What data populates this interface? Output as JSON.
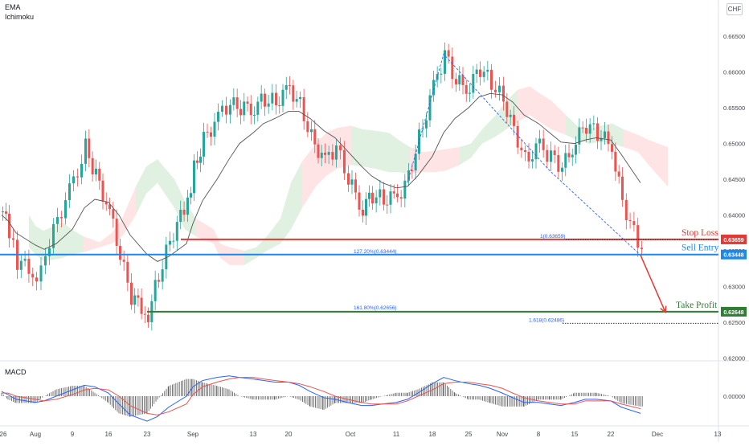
{
  "indicators": [
    "EMA",
    "Ichimoku"
  ],
  "currency": "CHF",
  "macd_label": "MACD",
  "colors": {
    "up": "#26a69a",
    "down": "#ef5350",
    "ema": "#555555",
    "cloud_bull": "#c8e6c9",
    "cloud_bear": "#ffcdd2",
    "stop": "#e53935",
    "entry": "#1e88e5",
    "target": "#2e7d32",
    "fib": "#2962ff",
    "macd": "#2962ff",
    "signal": "#ef5350",
    "hist": "#555555"
  },
  "chart_data": {
    "type": "line",
    "instrument_currency": "CHF",
    "x_axis_labels": [
      "26",
      "Aug",
      "9",
      "16",
      "23",
      "Sep",
      "13",
      "20",
      "Oct",
      "11",
      "18",
      "25",
      "Nov",
      "8",
      "15",
      "22",
      "Dec",
      "13"
    ],
    "y_ticks": [
      "0.66500",
      "0.66000",
      "0.65500",
      "0.65000",
      "0.64500",
      "0.64000",
      "0.63500",
      "0.63000",
      "0.62500",
      "0.62000"
    ],
    "ylim": [
      0.6195,
      0.6685
    ],
    "price_path": {
      "dates": [
        "Jul 26",
        "Jul 28",
        "Jul 30",
        "Aug 2",
        "Aug 4",
        "Aug 6",
        "Aug 9",
        "Aug 11",
        "Aug 13",
        "Aug 16",
        "Aug 18",
        "Aug 20",
        "Aug 23",
        "Aug 25",
        "Aug 27",
        "Aug 30",
        "Sep 1",
        "Sep 3",
        "Sep 6",
        "Sep 8",
        "Sep 10",
        "Sep 13",
        "Sep 15",
        "Sep 17",
        "Sep 20",
        "Sep 22",
        "Sep 24",
        "Sep 27",
        "Sep 29",
        "Oct 1",
        "Oct 4",
        "Oct 6",
        "Oct 8",
        "Oct 11",
        "Oct 13",
        "Oct 15",
        "Oct 18",
        "Oct 20",
        "Oct 22",
        "Oct 25",
        "Oct 27",
        "Oct 29",
        "Nov 1",
        "Nov 3",
        "Nov 5",
        "Nov 8",
        "Nov 10",
        "Nov 12",
        "Nov 15",
        "Nov 17",
        "Nov 19",
        "Nov 22",
        "Nov 24",
        "Nov 26"
      ],
      "close": [
        0.6405,
        0.6375,
        0.6335,
        0.6318,
        0.6348,
        0.6395,
        0.6445,
        0.6495,
        0.6455,
        0.6405,
        0.6342,
        0.6285,
        0.6262,
        0.6315,
        0.6365,
        0.6418,
        0.6465,
        0.6505,
        0.6538,
        0.6555,
        0.6548,
        0.6552,
        0.6562,
        0.6558,
        0.6578,
        0.6555,
        0.6508,
        0.6475,
        0.6495,
        0.6448,
        0.641,
        0.6428,
        0.6422,
        0.6425,
        0.6455,
        0.6508,
        0.6578,
        0.6625,
        0.6585,
        0.658,
        0.6605,
        0.6585,
        0.6562,
        0.652,
        0.6478,
        0.6495,
        0.6482,
        0.6465,
        0.6505,
        0.6525,
        0.6515,
        0.6495,
        0.642,
        0.6344
      ]
    },
    "ema_path": [
      0.64,
      0.6392,
      0.6375,
      0.6358,
      0.6352,
      0.636,
      0.638,
      0.641,
      0.6422,
      0.6418,
      0.64,
      0.6372,
      0.6345,
      0.6335,
      0.6342,
      0.636,
      0.6388,
      0.642,
      0.645,
      0.6478,
      0.65,
      0.6515,
      0.6528,
      0.6535,
      0.6545,
      0.6545,
      0.6535,
      0.6518,
      0.6508,
      0.649,
      0.6468,
      0.6455,
      0.6445,
      0.6438,
      0.644,
      0.6455,
      0.6482,
      0.6515,
      0.6535,
      0.655,
      0.6565,
      0.657,
      0.6568,
      0.6558,
      0.654,
      0.6528,
      0.6515,
      0.6502,
      0.65,
      0.6505,
      0.6508,
      0.6505,
      0.6485,
      0.6445
    ],
    "zigzag": [
      [
        "Oct 13",
        0.6445
      ],
      [
        "Oct 20",
        0.6625
      ],
      [
        "Nov 10",
        0.6462
      ],
      [
        "Nov 26",
        0.6344
      ]
    ],
    "horizontal_lines": [
      {
        "name": "Stop Loss",
        "value": 0.63659,
        "badge": "0.63659"
      },
      {
        "name": "Sell Entry",
        "value": 0.63448,
        "badge": "0.63448"
      },
      {
        "name": "Take Profit",
        "value": 0.62648,
        "badge": "0.62648"
      }
    ],
    "fib_labels": [
      {
        "text": "1(0.63659)",
        "value": 0.63659
      },
      {
        "text": "127.20%(0.63444)",
        "value": 0.63444
      },
      {
        "text": "161.80%(0.62656)",
        "value": 0.62656
      },
      {
        "text": "1.618(0.62486)",
        "value": 0.62486
      }
    ],
    "projection": {
      "from": [
        "Nov 26",
        0.6344
      ],
      "to": [
        "Dec 1",
        0.6264
      ]
    },
    "macd": {
      "y_ticks": [
        "0.00000"
      ],
      "macd_line": [
        0.0003,
        0.0001,
        -0.0002,
        -0.0004,
        -0.0003,
        0.0,
        0.0004,
        0.0007,
        0.0006,
        0.0002,
        -0.0005,
        -0.0012,
        -0.0016,
        -0.0013,
        -0.0007,
        0.0,
        0.0006,
        0.001,
        0.0012,
        0.0013,
        0.0012,
        0.0011,
        0.001,
        0.0009,
        0.0009,
        0.0007,
        0.0003,
        -0.0001,
        -0.0002,
        -0.0004,
        -0.0006,
        -0.0006,
        -0.0005,
        -0.0004,
        -0.0002,
        0.0002,
        0.0008,
        0.0012,
        0.001,
        0.0008,
        0.0007,
        0.0005,
        0.0002,
        -0.0001,
        -0.0004,
        -0.0004,
        -0.0005,
        -0.0006,
        -0.0004,
        -0.0002,
        -0.0002,
        -0.0003,
        -0.0007,
        -0.0011
      ],
      "signal_line": [
        0.0002,
        0.0002,
        0.0,
        -0.0002,
        -0.0003,
        -0.0002,
        0.0001,
        0.0004,
        0.0005,
        0.0004,
        0.0,
        -0.0006,
        -0.0011,
        -0.0012,
        -0.001,
        -0.0005,
        0.0001,
        0.0006,
        0.0009,
        0.0011,
        0.0012,
        0.0012,
        0.0011,
        0.001,
        0.0009,
        0.0008,
        0.0006,
        0.0003,
        0.0,
        -0.0002,
        -0.0004,
        -0.0005,
        -0.0005,
        -0.0005,
        -0.0003,
        0.0,
        0.0004,
        0.0008,
        0.0009,
        0.0009,
        0.0008,
        0.0007,
        0.0005,
        0.0002,
        -0.0001,
        -0.0003,
        -0.0004,
        -0.0005,
        -0.0005,
        -0.0003,
        -0.0003,
        -0.0003,
        -0.0005,
        -0.0008
      ]
    }
  }
}
